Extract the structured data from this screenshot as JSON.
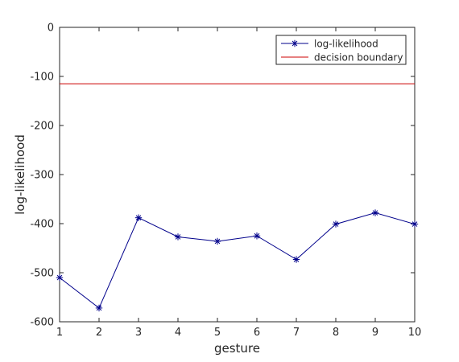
{
  "chart_data": {
    "type": "line",
    "xlabel": "gesture",
    "ylabel": "log-likelihood",
    "xlim": [
      1,
      10
    ],
    "ylim": [
      -600,
      0
    ],
    "xticks": [
      1,
      2,
      3,
      4,
      5,
      6,
      7,
      8,
      9,
      10
    ],
    "yticks": [
      0,
      -100,
      -200,
      -300,
      -400,
      -500,
      -600
    ],
    "grid": false,
    "legend_position": "top-right",
    "series": [
      {
        "name": "log-likelihood",
        "color": "#00008b",
        "marker": "asterisk",
        "x": [
          1,
          2,
          3,
          4,
          5,
          6,
          7,
          8,
          9,
          10
        ],
        "values": [
          -510,
          -572,
          -388,
          -427,
          -436,
          -425,
          -473,
          -401,
          -378,
          -401
        ]
      },
      {
        "name": "decision boundary",
        "color": "#cc0000",
        "marker": "none",
        "x": [
          1,
          10
        ],
        "values": [
          -115,
          -115
        ]
      }
    ]
  }
}
